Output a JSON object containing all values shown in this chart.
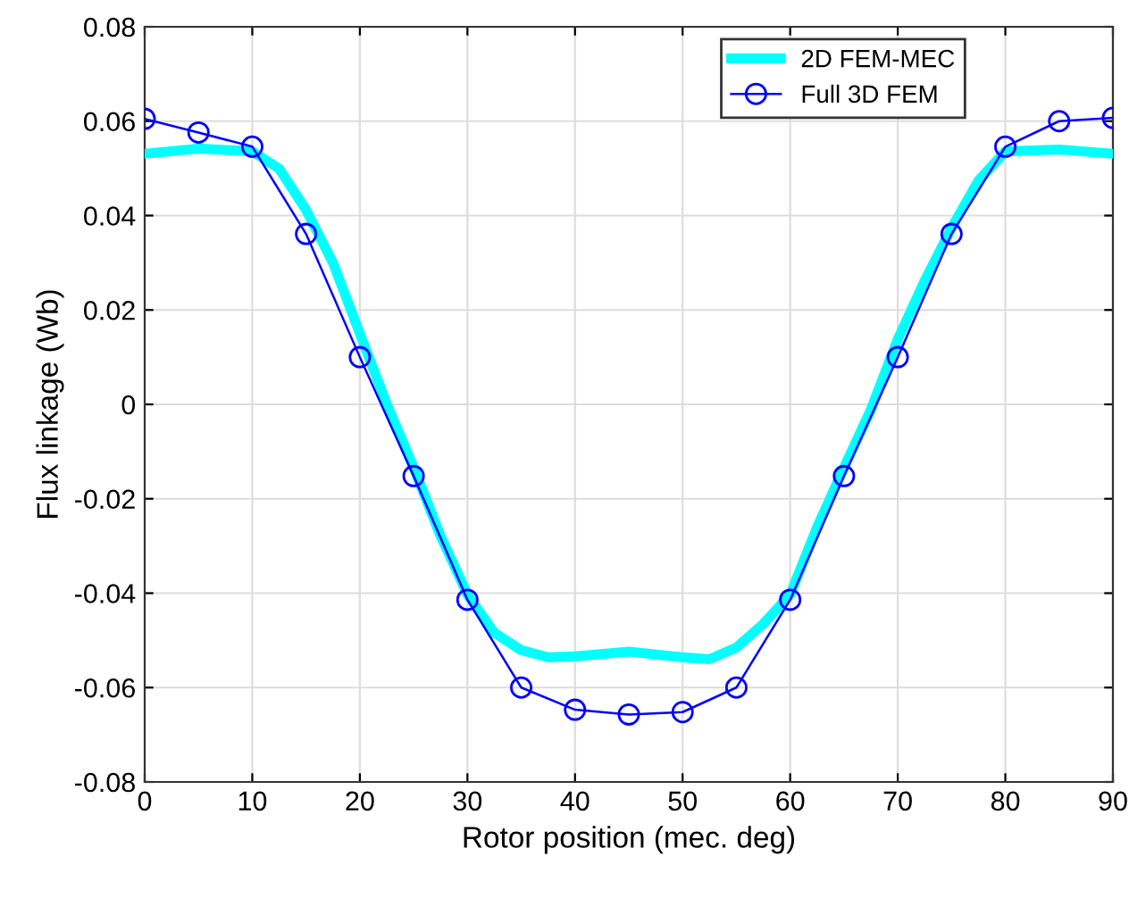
{
  "chart_data": {
    "type": "line",
    "xlabel": "Rotor position (mec. deg)",
    "ylabel": "Flux linkage (Wb)",
    "xlim": [
      0,
      90
    ],
    "xticks": [
      0,
      10,
      20,
      30,
      40,
      50,
      60,
      70,
      80,
      90
    ],
    "ylim": [
      -0.08,
      0.08
    ],
    "yticks": [
      -0.08,
      -0.06,
      -0.04,
      -0.02,
      0,
      0.02,
      0.04,
      0.06,
      0.08
    ],
    "grid": true,
    "legend": "top right",
    "series": [
      {
        "name": "2D FEM-MEC",
        "color": "#00ffff",
        "marker": "none",
        "line_style": "solid",
        "x": [
          0,
          5,
          10,
          12.5,
          15,
          17.5,
          20,
          22.5,
          25,
          27.5,
          30,
          32.5,
          35,
          37.5,
          40,
          45,
          50,
          52.5,
          55,
          57.5,
          60,
          62.5,
          65,
          67.5,
          70,
          72.5,
          75,
          77.5,
          80,
          85,
          90
        ],
        "values": [
          0.0531,
          0.0542,
          0.0536,
          0.0499,
          0.0412,
          0.03,
          0.015,
          0.0001,
          -0.0134,
          -0.0279,
          -0.0403,
          -0.0484,
          -0.0521,
          -0.0536,
          -0.0534,
          -0.0524,
          -0.0536,
          -0.054,
          -0.0515,
          -0.0465,
          -0.0403,
          -0.026,
          -0.0134,
          -0.0011,
          0.0138,
          0.0262,
          0.0374,
          0.0474,
          0.0536,
          0.054,
          0.0531
        ]
      },
      {
        "name": "Full 3D FEM",
        "color": "#0000ff",
        "marker": "circle",
        "line_style": "solid",
        "x": [
          0,
          5,
          10,
          15,
          20,
          25,
          30,
          35,
          40,
          45,
          50,
          55,
          60,
          65,
          70,
          75,
          80,
          85,
          90
        ],
        "values": [
          0.0605,
          0.0576,
          0.0546,
          0.0361,
          0.01,
          -0.0152,
          -0.0414,
          -0.06,
          -0.0647,
          -0.0657,
          -0.0652,
          -0.06,
          -0.0414,
          -0.0152,
          0.01,
          0.0361,
          0.0546,
          0.06,
          0.0607
        ]
      }
    ]
  }
}
